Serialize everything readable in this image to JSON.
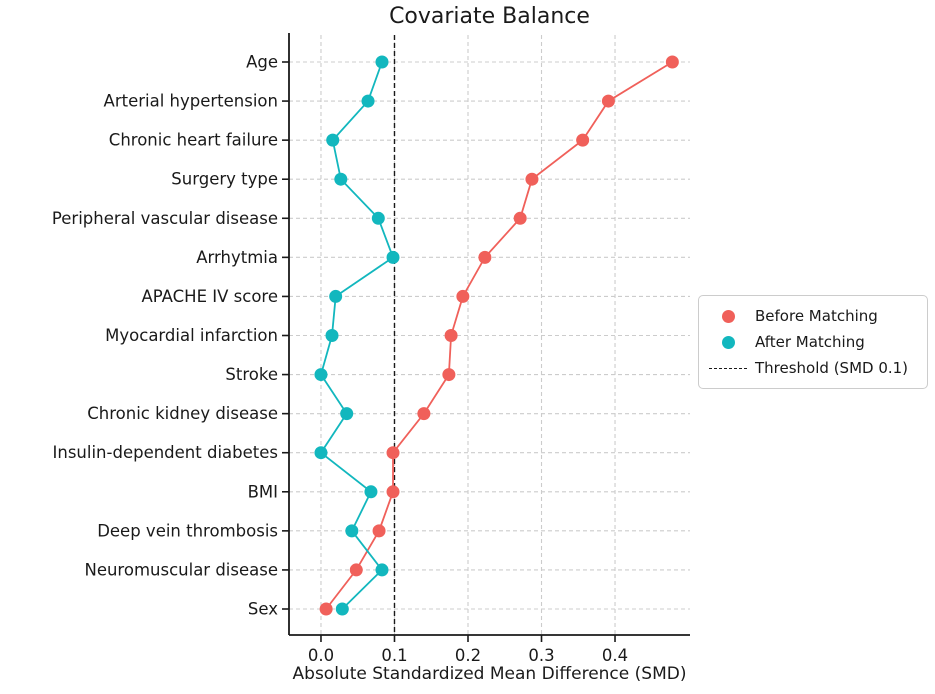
{
  "title": "Covariate Balance",
  "colors": {
    "before": "#F0605A",
    "after": "#12B7BE",
    "threshold": "#1a1a1a",
    "grid": "#cccccc",
    "text": "#1a1a1a",
    "background": "#ffffff"
  },
  "legend": {
    "items": [
      {
        "label": "Before Matching",
        "marker": "dot-icon",
        "color": "#F0605A"
      },
      {
        "label": "After Matching",
        "marker": "dot-icon",
        "color": "#12B7BE"
      },
      {
        "label": "Threshold (SMD 0.1)",
        "marker": "dashed-line-icon",
        "color": "#1a1a1a"
      }
    ]
  },
  "chart_data": {
    "type": "scatter",
    "subtype": "dot-plot-covariate-balance",
    "title": "Covariate Balance",
    "xlabel": "Absolute Standardized Mean Difference (SMD)",
    "ylabel": "",
    "categories": [
      "Age",
      "Arterial hypertension",
      "Chronic heart failure",
      "Surgery type",
      "Peripheral vascular disease",
      "Arrhytmia",
      "APACHE IV score",
      "Myocardial infarction",
      "Stroke",
      "Chronic kidney disease",
      "Insulin-dependent diabetes",
      "BMI",
      "Deep vein thrombosis",
      "Neuromuscular disease",
      "Sex"
    ],
    "series": [
      {
        "name": "Before Matching",
        "color": "#F0605A",
        "values": [
          0.478,
          0.391,
          0.356,
          0.287,
          0.271,
          0.223,
          0.193,
          0.177,
          0.174,
          0.14,
          0.098,
          0.098,
          0.079,
          0.048,
          0.007
        ]
      },
      {
        "name": "After Matching",
        "color": "#12B7BE",
        "values": [
          0.083,
          0.064,
          0.016,
          0.027,
          0.078,
          0.098,
          0.02,
          0.015,
          0.0,
          0.035,
          0.0,
          0.068,
          0.042,
          0.083,
          0.029
        ]
      }
    ],
    "threshold": {
      "value": 0.1,
      "label": "Threshold (SMD 0.1)"
    },
    "x_ticks": [
      0.0,
      0.1,
      0.2,
      0.3,
      0.4
    ],
    "x_tick_labels": [
      "0.0",
      "0.1",
      "0.2",
      "0.3",
      "0.4"
    ],
    "xlim": [
      -0.0435,
      0.502
    ],
    "grid": true,
    "legend_position": "outside-center-right"
  }
}
